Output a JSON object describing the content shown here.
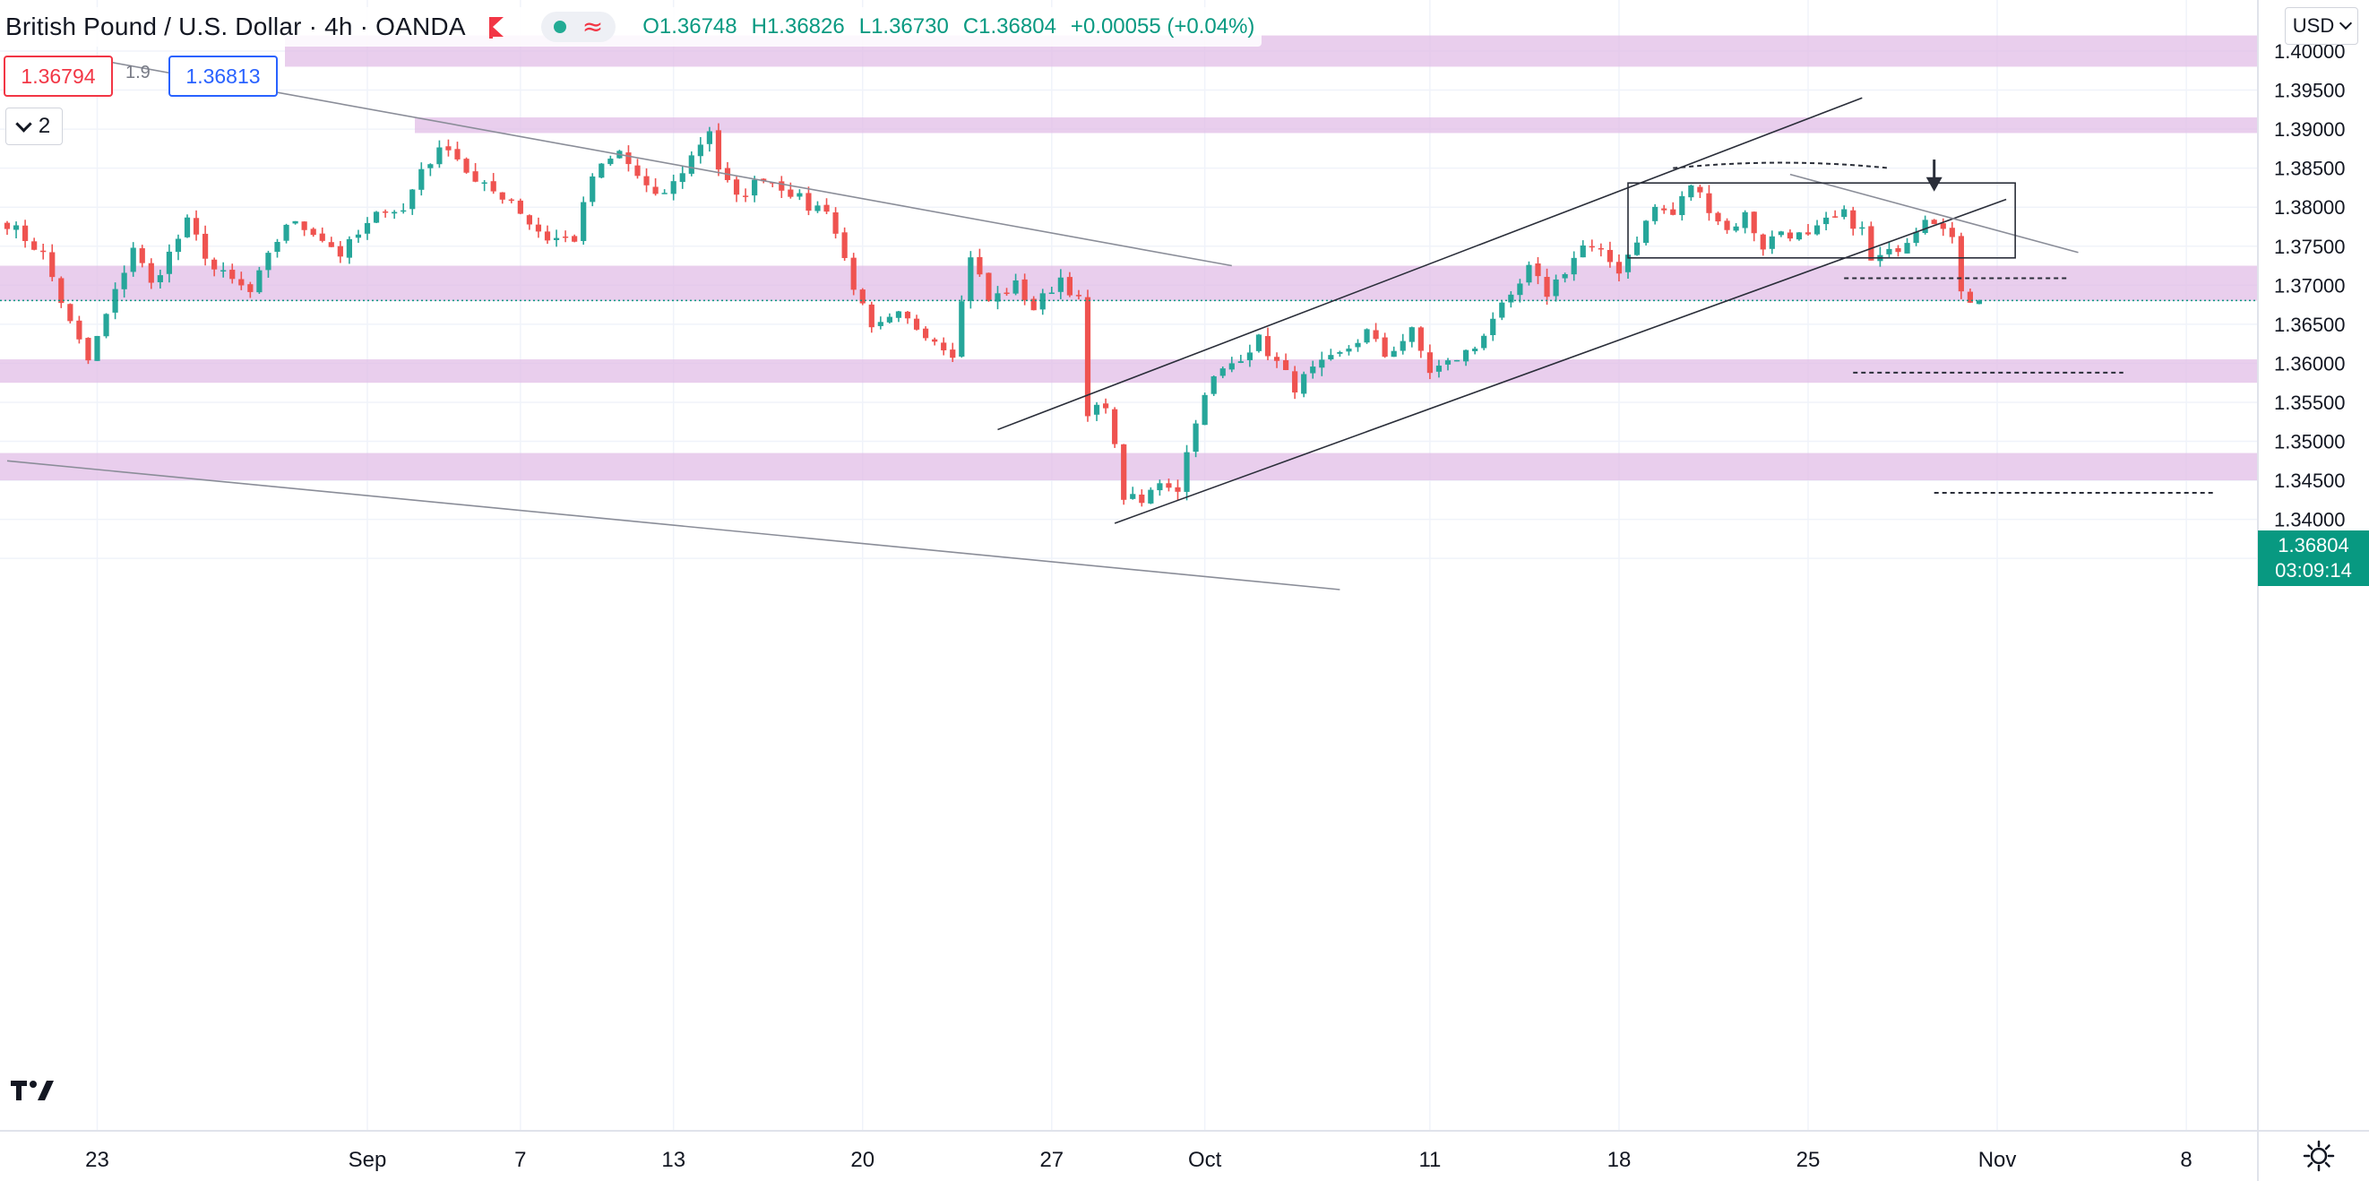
{
  "legend": {
    "title": "British Pound / U.S. Dollar · 4h · OANDA",
    "ohlc": {
      "o": "O1.36748",
      "h": "H1.36826",
      "l": "L1.36730",
      "c": "C1.36804",
      "change": "+0.00055 (+0.04%)"
    }
  },
  "trade": {
    "sell_price": "1.36794",
    "spread": "1.9",
    "buy_price": "1.36813"
  },
  "indicators_toggle": {
    "count": "2"
  },
  "currency": {
    "label": "USD"
  },
  "last_price": {
    "value": "1.36804",
    "countdown": "03:09:14"
  },
  "colors": {
    "up": "#26a69a",
    "down": "#ef5350",
    "zone": "#e1bee7",
    "accent": "#089981"
  },
  "icons": {
    "logo": "tradingview-logo-icon",
    "settings": "gear-icon",
    "flag": "flag-icon",
    "collapse": "chevron-down-icon"
  },
  "chart_data": {
    "type": "candlestick",
    "symbol": "GBPUSD",
    "interval": "4h",
    "ylim": [
      1.33,
      1.403
    ],
    "y_ticks": [
      "1.40000",
      "1.39500",
      "1.39000",
      "1.38500",
      "1.38000",
      "1.37500",
      "1.37000",
      "1.36500",
      "1.36000",
      "1.35500",
      "1.35000",
      "1.34500",
      "1.34000",
      "1.33500"
    ],
    "x_ticks": [
      {
        "label": "23",
        "idx": 10
      },
      {
        "label": "Sep",
        "idx": 40
      },
      {
        "label": "7",
        "idx": 57
      },
      {
        "label": "13",
        "idx": 74
      },
      {
        "label": "20",
        "idx": 95
      },
      {
        "label": "27",
        "idx": 116
      },
      {
        "label": "Oct",
        "idx": 133
      },
      {
        "label": "11",
        "idx": 158
      },
      {
        "label": "18",
        "idx": 179
      },
      {
        "label": "25",
        "idx": 200
      },
      {
        "label": "Nov",
        "idx": 221
      },
      {
        "label": "8",
        "idx": 242
      }
    ],
    "keypoints": [
      [
        0,
        1.378
      ],
      [
        4,
        1.374
      ],
      [
        7,
        1.365
      ],
      [
        9,
        1.3603
      ],
      [
        12,
        1.369
      ],
      [
        14,
        1.375
      ],
      [
        16,
        1.37
      ],
      [
        20,
        1.378
      ],
      [
        23,
        1.372
      ],
      [
        27,
        1.369
      ],
      [
        31,
        1.378
      ],
      [
        34,
        1.377
      ],
      [
        37,
        1.374
      ],
      [
        42,
        1.38
      ],
      [
        44,
        1.3795
      ],
      [
        46,
        1.385
      ],
      [
        49,
        1.388
      ],
      [
        52,
        1.383
      ],
      [
        56,
        1.381
      ],
      [
        58,
        1.378
      ],
      [
        60,
        1.376
      ],
      [
        63,
        1.376
      ],
      [
        65,
        1.384
      ],
      [
        68,
        1.387
      ],
      [
        70,
        1.384
      ],
      [
        72,
        1.381
      ],
      [
        74,
        1.383
      ],
      [
        78,
        1.39
      ],
      [
        79,
        1.385
      ],
      [
        81,
        1.381
      ],
      [
        84,
        1.384
      ],
      [
        87,
        1.382
      ],
      [
        89,
        1.38
      ],
      [
        91,
        1.38
      ],
      [
        94,
        1.37
      ],
      [
        96,
        1.364
      ],
      [
        99,
        1.366
      ],
      [
        102,
        1.364
      ],
      [
        105,
        1.3615
      ],
      [
        107,
        1.374
      ],
      [
        109,
        1.368
      ],
      [
        112,
        1.37
      ],
      [
        114,
        1.367
      ],
      [
        117,
        1.371
      ],
      [
        119,
        1.368
      ],
      [
        120,
        1.353
      ],
      [
        122,
        1.355
      ],
      [
        124,
        1.343
      ],
      [
        126,
        1.342
      ],
      [
        128,
        1.345
      ],
      [
        130,
        1.344
      ],
      [
        132,
        1.353
      ],
      [
        134,
        1.358
      ],
      [
        137,
        1.361
      ],
      [
        139,
        1.363
      ],
      [
        141,
        1.36
      ],
      [
        143,
        1.357
      ],
      [
        145,
        1.359
      ],
      [
        148,
        1.361
      ],
      [
        151,
        1.364
      ],
      [
        153,
        1.361
      ],
      [
        156,
        1.364
      ],
      [
        158,
        1.359
      ],
      [
        160,
        1.36
      ],
      [
        163,
        1.362
      ],
      [
        165,
        1.366
      ],
      [
        167,
        1.368
      ],
      [
        169,
        1.372
      ],
      [
        171,
        1.369
      ],
      [
        173,
        1.372
      ],
      [
        175,
        1.375
      ],
      [
        177,
        1.374
      ],
      [
        179,
        1.372
      ],
      [
        181,
        1.376
      ],
      [
        183,
        1.38
      ],
      [
        185,
        1.379
      ],
      [
        187,
        1.383
      ],
      [
        189,
        1.38
      ],
      [
        191,
        1.377
      ],
      [
        193,
        1.379
      ],
      [
        195,
        1.375
      ],
      [
        197,
        1.377
      ],
      [
        200,
        1.376
      ],
      [
        202,
        1.378
      ],
      [
        204,
        1.379
      ],
      [
        206,
        1.377
      ],
      [
        207,
        1.373
      ],
      [
        209,
        1.374
      ],
      [
        211,
        1.376
      ],
      [
        213,
        1.379
      ],
      [
        215,
        1.378
      ],
      [
        216,
        1.376
      ],
      [
        217,
        1.3685
      ],
      [
        219,
        1.368
      ]
    ],
    "zones": [
      [
        1.398,
        1.402
      ],
      [
        1.3895,
        1.3915
      ],
      [
        1.368,
        1.3725
      ],
      [
        1.3575,
        1.3605
      ],
      [
        1.345,
        1.3485
      ]
    ],
    "trendlines": [
      {
        "from": [
          9,
          1.3991
        ],
        "to": [
          136,
          1.3725
        ]
      },
      {
        "from": [
          0,
          1.3475
        ],
        "to": [
          148,
          1.331
        ]
      },
      {
        "from": [
          123,
          1.3395
        ],
        "to": [
          222,
          1.381
        ]
      },
      {
        "from": [
          110,
          1.3515
        ],
        "to": [
          206,
          1.394
        ]
      }
    ],
    "resistance_line": {
      "from": [
        198,
        1.3842
      ],
      "to": [
        230,
        1.3742
      ]
    },
    "range_box": {
      "x0": 180,
      "x1": 223,
      "y_top": 1.3831,
      "y_bottom": 1.3735
    },
    "target_levels": [
      {
        "x0": 204,
        "x1": 229,
        "y": 1.3709
      },
      {
        "x0": 205,
        "x1": 235,
        "y": 1.3588
      },
      {
        "x0": 214,
        "x1": 245,
        "y": 1.3434
      }
    ],
    "arc": {
      "x0": 185,
      "x1": 209,
      "y": 1.385,
      "peak": 1.3857
    },
    "arrow": {
      "x": 214,
      "y_from": 1.3861,
      "y_to": 1.382
    },
    "last_price": 1.36804
  }
}
